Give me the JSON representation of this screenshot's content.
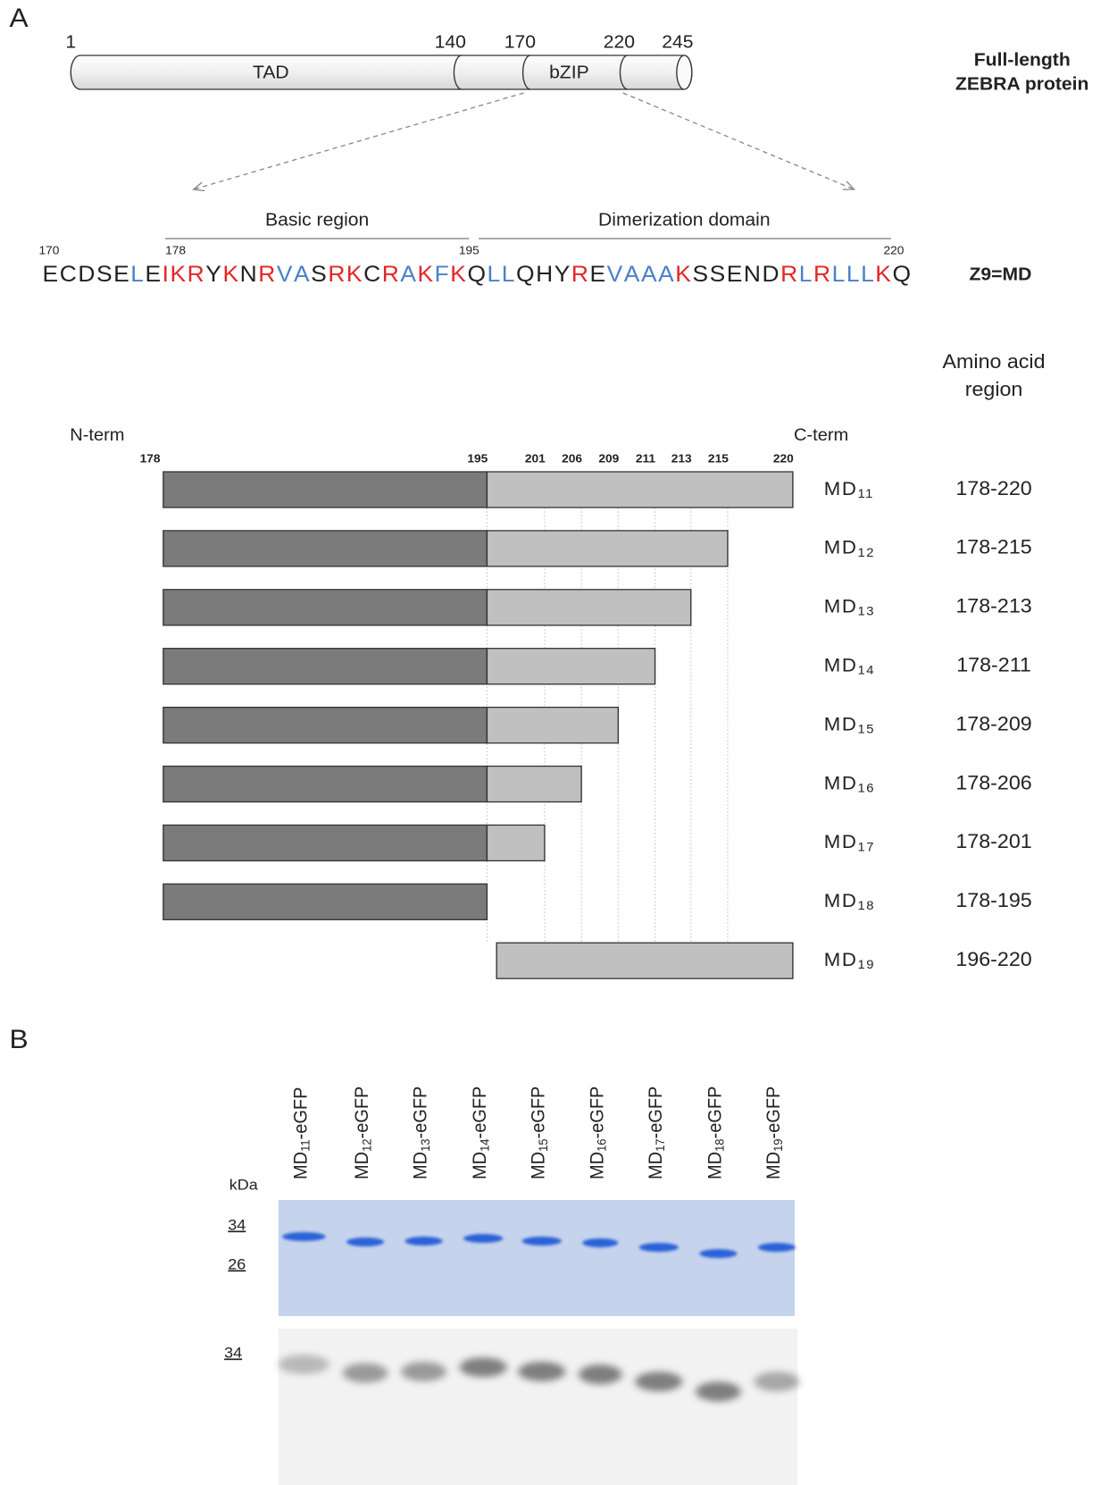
{
  "panel_a": {
    "label": "A",
    "protein": {
      "positions": [
        1,
        140,
        170,
        220,
        245
      ],
      "domains": [
        "TAD",
        "bZIP"
      ],
      "name": [
        "Full-length",
        "ZEBRA protein"
      ]
    },
    "sequence": {
      "regions": [
        "Basic region",
        "Dimerization domain"
      ],
      "positions": [
        170,
        178,
        195,
        220
      ],
      "name": "Z9=MD",
      "residues": [
        {
          "aa": "E",
          "color": "#222222"
        },
        {
          "aa": "C",
          "color": "#222222"
        },
        {
          "aa": "D",
          "color": "#222222"
        },
        {
          "aa": "S",
          "color": "#222222"
        },
        {
          "aa": "E",
          "color": "#222222"
        },
        {
          "aa": "L",
          "color": "#4a80c8"
        },
        {
          "aa": "E",
          "color": "#222222"
        },
        {
          "aa": "I",
          "color": "#e32626"
        },
        {
          "aa": "K",
          "color": "#e32626"
        },
        {
          "aa": "R",
          "color": "#e32626"
        },
        {
          "aa": "Y",
          "color": "#222222"
        },
        {
          "aa": "K",
          "color": "#e32626"
        },
        {
          "aa": "N",
          "color": "#222222"
        },
        {
          "aa": "R",
          "color": "#e32626"
        },
        {
          "aa": "V",
          "color": "#4a80c8"
        },
        {
          "aa": "A",
          "color": "#4a80c8"
        },
        {
          "aa": "S",
          "color": "#222222"
        },
        {
          "aa": "R",
          "color": "#e32626"
        },
        {
          "aa": "K",
          "color": "#e32626"
        },
        {
          "aa": "C",
          "color": "#222222"
        },
        {
          "aa": "R",
          "color": "#e32626"
        },
        {
          "aa": "A",
          "color": "#4a80c8"
        },
        {
          "aa": "K",
          "color": "#e32626"
        },
        {
          "aa": "F",
          "color": "#4a80c8"
        },
        {
          "aa": "K",
          "color": "#e32626"
        },
        {
          "aa": "Q",
          "color": "#222222"
        },
        {
          "aa": "L",
          "color": "#4a80c8"
        },
        {
          "aa": "L",
          "color": "#4a80c8"
        },
        {
          "aa": "Q",
          "color": "#222222"
        },
        {
          "aa": "H",
          "color": "#222222"
        },
        {
          "aa": "Y",
          "color": "#222222"
        },
        {
          "aa": "R",
          "color": "#e32626"
        },
        {
          "aa": "E",
          "color": "#222222"
        },
        {
          "aa": "V",
          "color": "#4a80c8"
        },
        {
          "aa": "A",
          "color": "#4a80c8"
        },
        {
          "aa": "A",
          "color": "#4a80c8"
        },
        {
          "aa": "A",
          "color": "#4a80c8"
        },
        {
          "aa": "K",
          "color": "#e32626"
        },
        {
          "aa": "S",
          "color": "#222222"
        },
        {
          "aa": "S",
          "color": "#222222"
        },
        {
          "aa": "E",
          "color": "#222222"
        },
        {
          "aa": "N",
          "color": "#222222"
        },
        {
          "aa": "D",
          "color": "#222222"
        },
        {
          "aa": "R",
          "color": "#e32626"
        },
        {
          "aa": "L",
          "color": "#4a80c8"
        },
        {
          "aa": "R",
          "color": "#e32626"
        },
        {
          "aa": "L",
          "color": "#4a80c8"
        },
        {
          "aa": "L",
          "color": "#4a80c8"
        },
        {
          "aa": "L",
          "color": "#4a80c8"
        },
        {
          "aa": "K",
          "color": "#e32626"
        },
        {
          "aa": "Q",
          "color": "#222222"
        }
      ]
    },
    "constructs": {
      "column_header": [
        "Amino acid",
        "region"
      ],
      "n_term": "N-term",
      "c_term": "C-term",
      "ticks": [
        178,
        195,
        201,
        206,
        209,
        211,
        213,
        215,
        220
      ],
      "items": [
        {
          "name": "MD",
          "sub": "11",
          "range": "178-220"
        },
        {
          "name": "MD",
          "sub": "12",
          "range": "178-215"
        },
        {
          "name": "MD",
          "sub": "13",
          "range": "178-213"
        },
        {
          "name": "MD",
          "sub": "14",
          "range": "178-211"
        },
        {
          "name": "MD",
          "sub": "15",
          "range": "178-209"
        },
        {
          "name": "MD",
          "sub": "16",
          "range": "178-206"
        },
        {
          "name": "MD",
          "sub": "17",
          "range": "178-201"
        },
        {
          "name": "MD",
          "sub": "18",
          "range": "178-195"
        },
        {
          "name": "MD",
          "sub": "19",
          "range": "196-220"
        }
      ]
    }
  },
  "panel_b": {
    "label": "B",
    "unit": "kDa",
    "lanes": [
      {
        "name": "MD",
        "sub": "11",
        "suffix": "-eGFP"
      },
      {
        "name": "MD",
        "sub": "12",
        "suffix": "-eGFP"
      },
      {
        "name": "MD",
        "sub": "13",
        "suffix": "-eGFP"
      },
      {
        "name": "MD",
        "sub": "14",
        "suffix": "-eGFP"
      },
      {
        "name": "MD",
        "sub": "15",
        "suffix": "-eGFP"
      },
      {
        "name": "MD",
        "sub": "16",
        "suffix": "-eGFP"
      },
      {
        "name": "MD",
        "sub": "17",
        "suffix": "-eGFP"
      },
      {
        "name": "MD",
        "sub": "18",
        "suffix": "-eGFP"
      },
      {
        "name": "MD",
        "sub": "19",
        "suffix": "-eGFP"
      }
    ],
    "gel_markers": [
      34,
      26
    ],
    "blot_markers": [
      34
    ]
  }
}
